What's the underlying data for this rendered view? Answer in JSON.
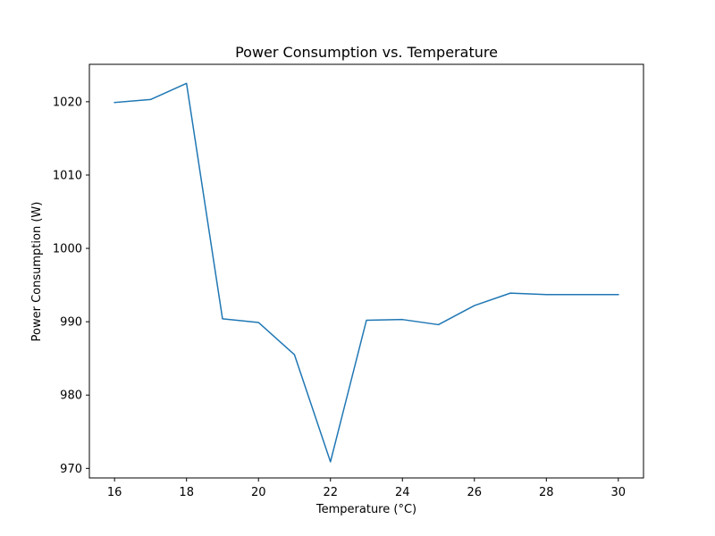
{
  "chart_data": {
    "type": "line",
    "title": "Power Consumption vs. Temperature",
    "xlabel": "Temperature (°C)",
    "ylabel": "Power Consumption (W)",
    "xlim": [
      15.3,
      30.7
    ],
    "ylim": [
      968.7,
      1025.1
    ],
    "xticks": [
      16,
      18,
      20,
      22,
      24,
      26,
      28,
      30
    ],
    "yticks": [
      970,
      980,
      990,
      1000,
      1010,
      1020
    ],
    "grid": false,
    "legend": "none",
    "series": [
      {
        "color": "#1f77b4",
        "x": [
          16,
          17,
          18,
          19,
          20,
          21,
          22,
          23,
          24,
          25,
          26,
          27,
          28,
          29,
          30
        ],
        "y": [
          1019.9,
          1020.3,
          1022.5,
          990.4,
          989.9,
          985.5,
          970.9,
          990.2,
          990.3,
          989.6,
          992.2,
          993.9,
          993.7,
          993.7,
          993.7
        ]
      }
    ]
  }
}
